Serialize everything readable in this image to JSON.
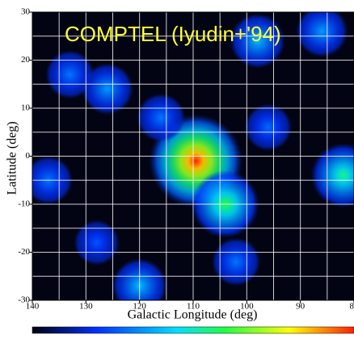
{
  "chart_data": {
    "type": "skymap",
    "title": "COMPTEL (Iyudin+'94)",
    "x_label": "Galactic Longitude (deg)",
    "y_label": "Latitude (deg)",
    "xlim": [
      140,
      80
    ],
    "ylim": [
      -30,
      30
    ],
    "xticks": [
      140,
      130,
      120,
      110,
      100,
      90,
      80
    ],
    "yticks": [
      -30,
      -20,
      -10,
      0,
      10,
      20,
      30
    ],
    "grid": true,
    "sources": {
      "lon": [
        109.5,
        104,
        82,
        98,
        86,
        126,
        133,
        120,
        102,
        137,
        116,
        96,
        128
      ],
      "lat": [
        -1,
        -10,
        -4,
        24,
        26,
        14,
        17,
        -27,
        -22,
        -5,
        8,
        6,
        -18
      ],
      "intensity": [
        1.0,
        0.6,
        0.55,
        0.4,
        0.35,
        0.35,
        0.3,
        0.4,
        0.3,
        0.3,
        0.3,
        0.28,
        0.25
      ]
    }
  }
}
